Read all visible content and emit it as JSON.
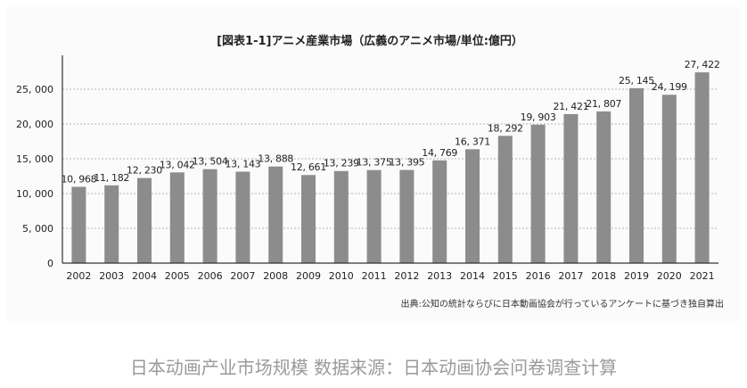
{
  "chart_data": {
    "type": "bar",
    "title": "[図表1-1]アニメ産業市場（広義のアニメ市場/単位:億円）",
    "categories": [
      "2002",
      "2003",
      "2004",
      "2005",
      "2006",
      "2007",
      "2008",
      "2009",
      "2010",
      "2011",
      "2012",
      "2013",
      "2014",
      "2015",
      "2016",
      "2017",
      "2018",
      "2019",
      "2020",
      "2021"
    ],
    "values": [
      10968,
      11182,
      12230,
      13042,
      13504,
      13143,
      13888,
      12661,
      13239,
      13375,
      13395,
      14769,
      16371,
      18292,
      19903,
      21421,
      21807,
      25145,
      24199,
      27422
    ],
    "data_labels": [
      "10, 968",
      "11, 182",
      "12, 230",
      "13, 042",
      "13, 504",
      "13, 143",
      "13, 888",
      "12, 661",
      "13, 239",
      "13, 375",
      "13, 395",
      "14, 769",
      "16, 371",
      "18, 292",
      "19, 903",
      "21, 421",
      "21, 807",
      "25, 145",
      "24, 199",
      "27, 422"
    ],
    "yticks": [
      0,
      5000,
      10000,
      15000,
      20000,
      25000
    ],
    "ytick_labels": [
      "0",
      "5, 000",
      "10, 000",
      "15, 000",
      "20, 000",
      "25, 000"
    ],
    "ylim": [
      0,
      30000
    ],
    "grid": true,
    "bar_color": "#8c8c8c",
    "source": "出典:公知の統計ならびに日本動画協会が行っているアンケートに基づき独自算出"
  },
  "caption": "日本动画产业市场规模 数据来源：日本动画协会问卷调查计算"
}
